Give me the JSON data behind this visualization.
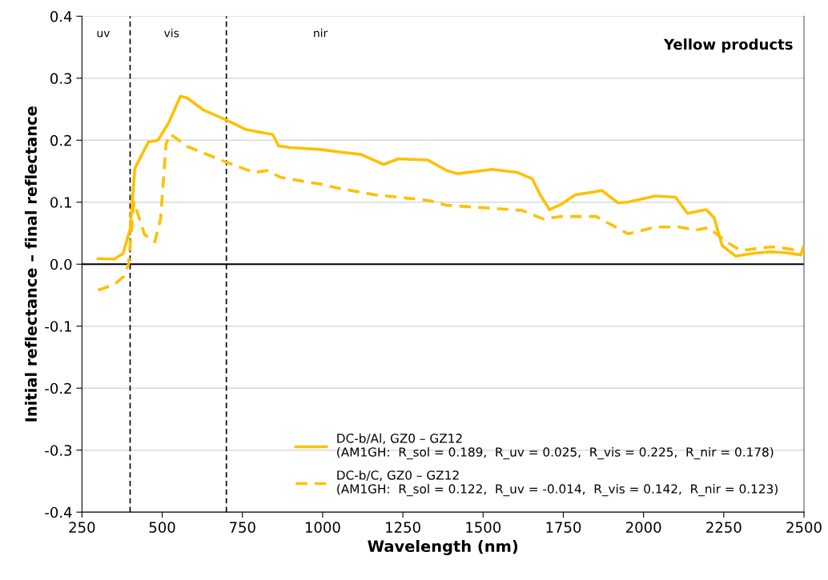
{
  "chart_data": {
    "type": "line",
    "title": "Yellow products",
    "xlabel": "Wavelength (nm)",
    "ylabel": "Initial reflectance – final reflectance",
    "xlim": [
      250,
      2500
    ],
    "xticks": [
      250,
      500,
      750,
      1000,
      1250,
      1500,
      1750,
      2000,
      2250,
      2500
    ],
    "ylim": [
      -0.4,
      0.4
    ],
    "yticks": [
      {
        "value": -0.4,
        "label": "-0.4"
      },
      {
        "value": -0.3,
        "label": "-0.3"
      },
      {
        "value": -0.2,
        "label": "-0.2"
      },
      {
        "value": -0.1,
        "label": "-0.1"
      },
      {
        "value": 0,
        "label": "0.0"
      },
      {
        "value": 0.1,
        "label": "0.1"
      },
      {
        "value": 0.2,
        "label": "0.2"
      },
      {
        "value": 0.3,
        "label": "0.3"
      },
      {
        "value": 0.4,
        "label": "0.4"
      }
    ],
    "grid": "y",
    "legend": "bottom right",
    "series": [
      {
        "name": "DC-b/Al, GZ0 – GZ12\n(AM1GH:  R_sol = 0.189,  R_uv = 0.025,  R_vis = 0.225,  R_nir = 0.178)",
        "color": "#ffc000",
        "line_style": "solid",
        "x": [
          300,
          350,
          378,
          400,
          415,
          428,
          457,
          487,
          520,
          557,
          578,
          628,
          702,
          762,
          845,
          862,
          900,
          995,
          1053,
          1120,
          1190,
          1237,
          1328,
          1387,
          1420,
          1528,
          1607,
          1653,
          1678,
          1707,
          1745,
          1787,
          1852,
          1870,
          1920,
          1950,
          2037,
          2100,
          2137,
          2195,
          2220,
          2245,
          2287,
          2350,
          2400,
          2450,
          2490,
          2500
        ],
        "values": [
          0.009,
          0.008,
          0.017,
          0.056,
          0.155,
          0.168,
          0.197,
          0.2,
          0.228,
          0.271,
          0.268,
          0.249,
          0.232,
          0.217,
          0.209,
          0.191,
          0.188,
          0.185,
          0.181,
          0.177,
          0.161,
          0.17,
          0.168,
          0.151,
          0.146,
          0.153,
          0.148,
          0.138,
          0.112,
          0.088,
          0.097,
          0.112,
          0.117,
          0.119,
          0.099,
          0.1,
          0.11,
          0.108,
          0.082,
          0.088,
          0.075,
          0.03,
          0.013,
          0.018,
          0.02,
          0.018,
          0.015,
          0.03
        ]
      },
      {
        "name": "DC-b/C, GZ0 – GZ12\n(AM1GH:  R_sol = 0.122,  R_uv = -0.014,  R_vis = 0.142,  R_nir = 0.123)",
        "color": "#ffc000",
        "line_style": "dashed",
        "x": [
          300,
          350,
          380,
          395,
          412,
          445,
          477,
          495,
          512,
          525,
          578,
          702,
          787,
          827,
          870,
          995,
          1045,
          1162,
          1328,
          1387,
          1620,
          1687,
          1745,
          1852,
          1952,
          2037,
          2112,
          2162,
          2202,
          2262,
          2302,
          2350,
          2400,
          2450,
          2500
        ],
        "values": [
          -0.042,
          -0.033,
          -0.02,
          0.0,
          0.1,
          0.048,
          0.036,
          0.073,
          0.194,
          0.21,
          0.19,
          0.164,
          0.148,
          0.151,
          0.14,
          0.129,
          0.123,
          0.112,
          0.103,
          0.095,
          0.087,
          0.073,
          0.077,
          0.077,
          0.049,
          0.06,
          0.06,
          0.055,
          0.059,
          0.035,
          0.022,
          0.025,
          0.028,
          0.025,
          0.02
        ]
      }
    ],
    "ref_lines": [
      {
        "axis": "x",
        "value": 400,
        "color": "#000000",
        "line_style": "dashed"
      },
      {
        "axis": "x",
        "value": 700,
        "color": "#000000",
        "line_style": "dashed"
      },
      {
        "axis": "y",
        "value": 0,
        "color": "#000000",
        "line_style": "solid"
      }
    ],
    "annotations": [
      "uv",
      "vis",
      "nir"
    ]
  }
}
